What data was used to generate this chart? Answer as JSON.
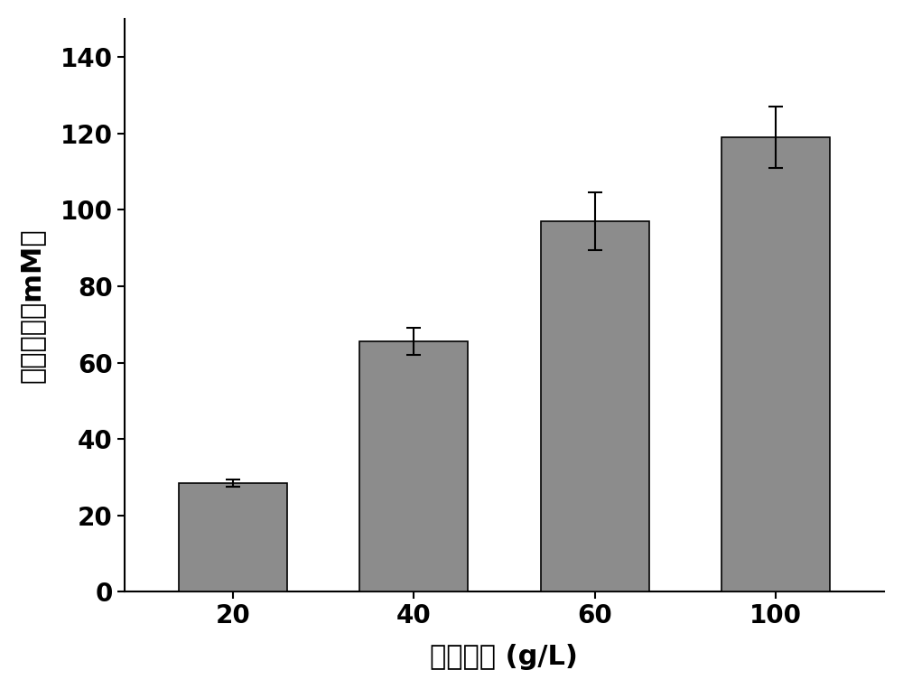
{
  "categories": [
    "20",
    "40",
    "60",
    "100"
  ],
  "values": [
    28.5,
    65.5,
    97.0,
    119.0
  ],
  "errors": [
    1.0,
    3.5,
    7.5,
    8.0
  ],
  "bar_color": "#8C8C8C",
  "bar_edgecolor": "#000000",
  "bar_width": 0.6,
  "xlabel": "底物浓度 (g/L)",
  "ylabel": "氢气产量（mM）",
  "ylim": [
    0,
    150
  ],
  "yticks": [
    0,
    20,
    40,
    60,
    80,
    100,
    120,
    140
  ],
  "label_fontsize": 22,
  "tick_fontsize": 20,
  "background_color": "#ffffff",
  "errorbar_capsize": 6,
  "errorbar_linewidth": 1.5,
  "errorbar_color": "#000000",
  "spine_linewidth": 1.5
}
